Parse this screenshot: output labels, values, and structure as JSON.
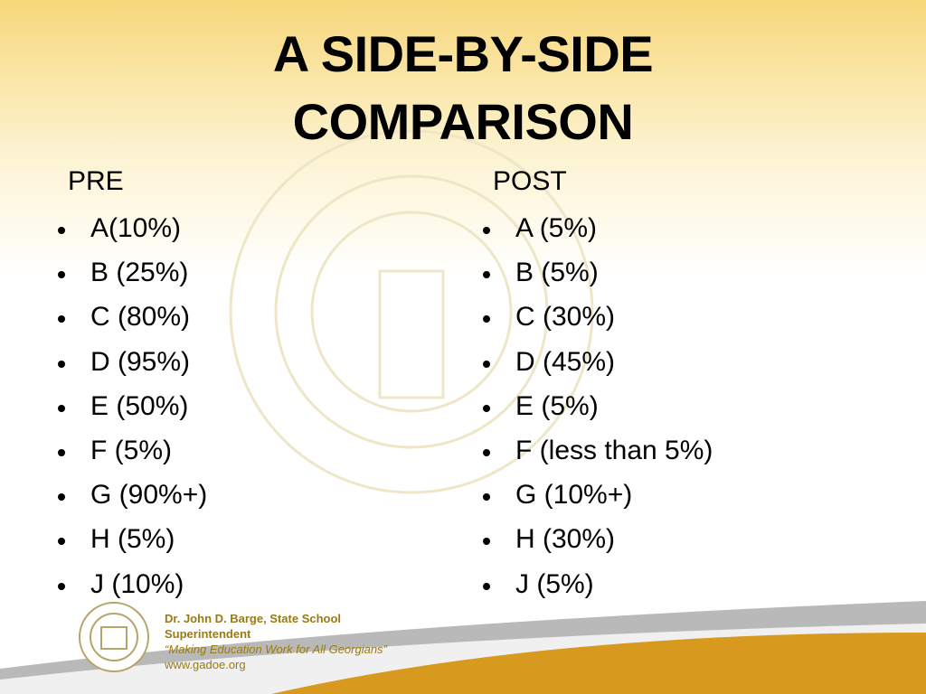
{
  "title": [
    "A SIDE-BY-SIDE",
    "COMPARISON"
  ],
  "columns": [
    {
      "heading": "PRE",
      "items": [
        "A(10%)",
        "B (25%)",
        "C (80%)",
        "D (95%)",
        "E (50%)",
        "F (5%)",
        "G (90%+)",
        "H (5%)",
        "J (10%)"
      ]
    },
    {
      "heading": "POST",
      "items": [
        "A (5%)",
        "B (5%)",
        "C (30%)",
        "D (45%)",
        "E (5%)",
        "F (less than 5%)",
        "G (10%+)",
        "H (30%)",
        "J (5%)"
      ]
    }
  ],
  "footer": {
    "name": "Dr. John D. Barge, State School Superintendent",
    "motto": "“Making Education Work for All Georgians”",
    "url": "www.gadoe.org"
  }
}
